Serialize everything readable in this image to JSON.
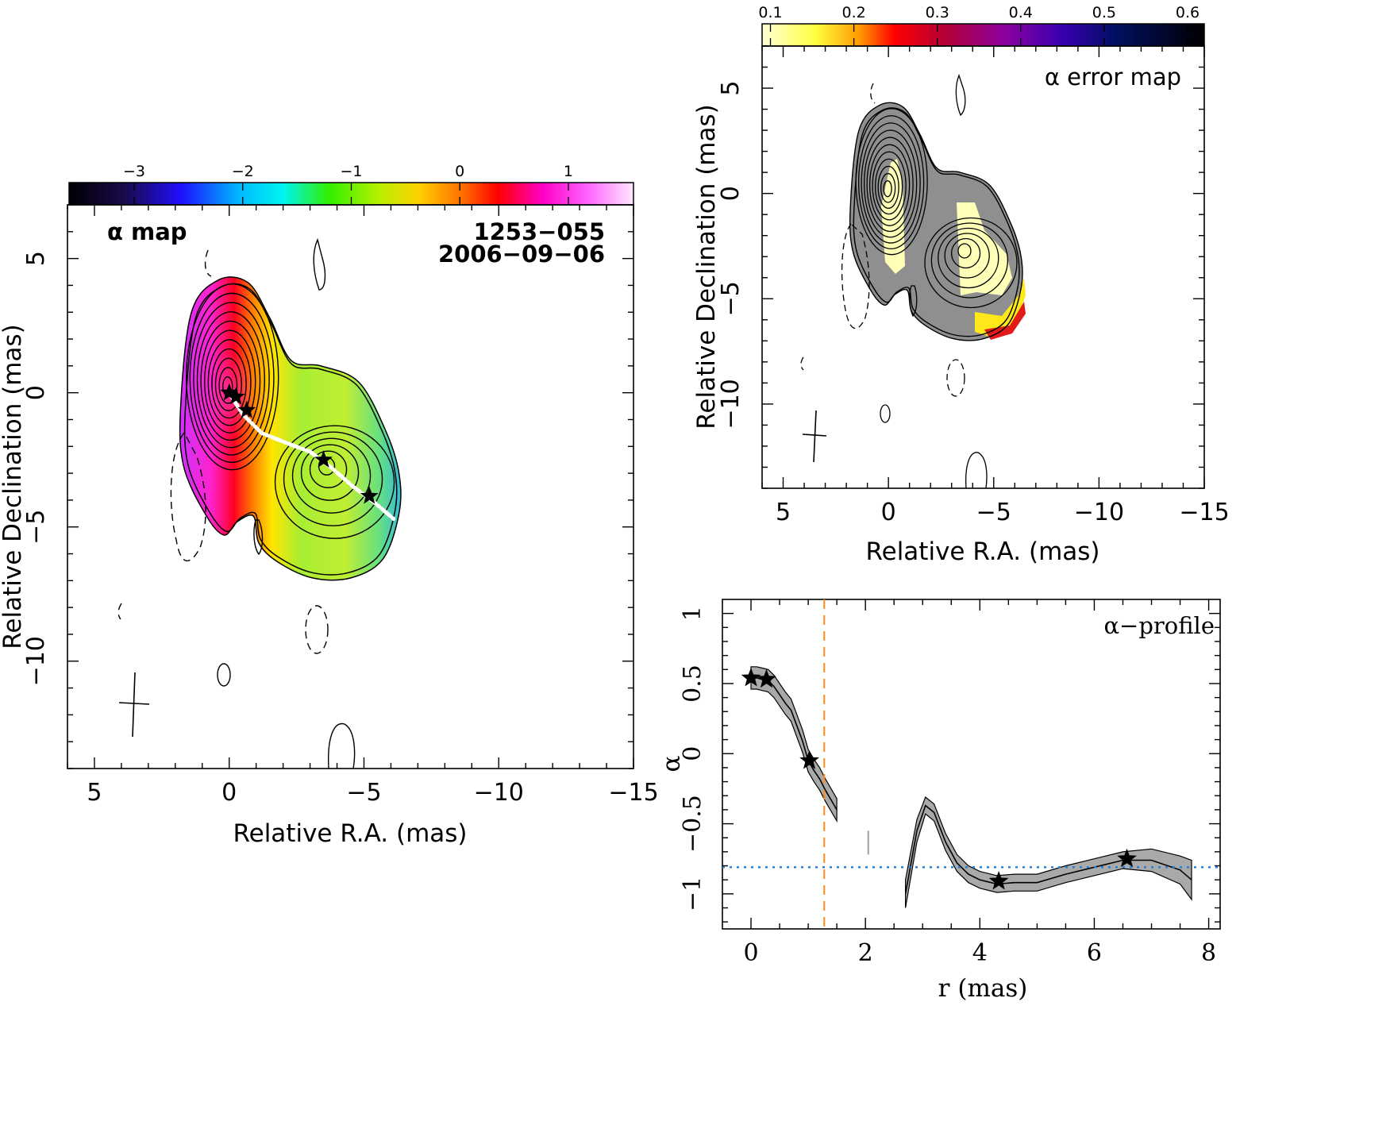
{
  "figure": {
    "panel_a": {
      "label": "α map",
      "source": "1253−055",
      "epoch": "2006−09−06",
      "xlabel": "Relative R.A. (mas)",
      "ylabel": "Relative Declination (mas)"
    },
    "panel_b": {
      "label": "α error map",
      "xlabel": "Relative R.A. (mas)",
      "ylabel": "Relative Declination (mas)"
    },
    "panel_c": {
      "label": "α−profile",
      "xlabel": "r (mas)",
      "ylabel": "α"
    }
  },
  "chart_data": [
    {
      "type": "heatmap",
      "title": "α map",
      "annotations": [
        "1253−055",
        "2006−09−06"
      ],
      "xlabel": "Relative R.A. (mas)",
      "ylabel": "Relative Declination (mas)",
      "xlim": [
        6,
        -15
      ],
      "ylim": [
        -14,
        7
      ],
      "xticks": [
        5,
        0,
        -5,
        -10,
        -15
      ],
      "yticks": [
        5,
        0,
        -5,
        -10
      ],
      "colorbar": {
        "range": [
          -3.6,
          1.6
        ],
        "ticks": [
          -3,
          -2,
          -1,
          0,
          1
        ]
      },
      "core_alpha": 0.5,
      "jet_alpha": -0.8,
      "core_position": [
        0,
        0
      ],
      "knot_position": [
        -3.5,
        -2.5
      ],
      "stars": [
        [
          0,
          0
        ],
        [
          -0.25,
          -0.15
        ],
        [
          -0.65,
          -0.65
        ],
        [
          -3.5,
          -2.5
        ],
        [
          -5.2,
          -3.85
        ]
      ],
      "ridge_line": [
        [
          0,
          0
        ],
        [
          -0.5,
          -0.8
        ],
        [
          -1.2,
          -1.5
        ],
        [
          -2.2,
          -1.9
        ],
        [
          -3.0,
          -2.2
        ],
        [
          -3.8,
          -2.8
        ],
        [
          -4.6,
          -3.5
        ],
        [
          -5.4,
          -4.1
        ],
        [
          -6.1,
          -4.7
        ]
      ],
      "grid": false
    },
    {
      "type": "heatmap",
      "title": "α error map",
      "xlabel": "Relative R.A. (mas)",
      "ylabel": "Relative Declination (mas)",
      "xlim": [
        6,
        -15
      ],
      "ylim": [
        -14,
        7
      ],
      "xticks": [
        5,
        0,
        -5,
        -10,
        -15
      ],
      "yticks": [
        5,
        0,
        -5,
        -10
      ],
      "colorbar": {
        "range": [
          0.09,
          0.62
        ],
        "ticks": [
          0.1,
          0.2,
          0.3,
          0.4,
          0.5,
          0.6
        ]
      },
      "grid": false
    },
    {
      "type": "line",
      "title": "α−profile",
      "xlabel": "r (mas)",
      "ylabel": "α",
      "xlim": [
        -0.5,
        8.2
      ],
      "ylim": [
        -1.25,
        1.1
      ],
      "xticks": [
        0,
        2,
        4,
        6,
        8
      ],
      "yticks": [
        -1,
        -0.5,
        0,
        0.5,
        1
      ],
      "series": [
        {
          "segments": [
            {
              "x": [
                0,
                0.1,
                0.2,
                0.3,
                0.4,
                0.5,
                0.6,
                0.7,
                0.8,
                0.9,
                1.0,
                1.1,
                1.2,
                1.3,
                1.4,
                1.5
              ],
              "y": [
                0.54,
                0.54,
                0.53,
                0.52,
                0.48,
                0.42,
                0.36,
                0.31,
                0.2,
                0.09,
                -0.05,
                -0.12,
                -0.18,
                -0.26,
                -0.33,
                -0.4
              ],
              "err": [
                0.08,
                0.08,
                0.08,
                0.08,
                0.08,
                0.08,
                0.08,
                0.08,
                0.08,
                0.08,
                0.08,
                0.08,
                0.08,
                0.08,
                0.08,
                0.08
              ]
            },
            {
              "x": [
                2.7,
                2.9,
                3.05,
                3.2,
                3.4,
                3.6,
                3.8,
                4.0,
                4.3,
                4.6,
                5.0,
                5.5,
                6.0,
                6.5,
                7.0,
                7.5,
                7.7
              ],
              "y": [
                -1.0,
                -0.55,
                -0.37,
                -0.42,
                -0.63,
                -0.78,
                -0.86,
                -0.9,
                -0.93,
                -0.92,
                -0.92,
                -0.86,
                -0.81,
                -0.76,
                -0.76,
                -0.83,
                -0.9
              ],
              "err": [
                0.1,
                0.08,
                0.06,
                0.06,
                0.06,
                0.06,
                0.06,
                0.06,
                0.06,
                0.06,
                0.06,
                0.06,
                0.06,
                0.06,
                0.08,
                0.1,
                0.14
              ]
            }
          ]
        }
      ],
      "stars": [
        [
          0.0,
          0.54
        ],
        [
          0.27,
          0.53
        ],
        [
          1.02,
          -0.05
        ],
        [
          4.33,
          -0.91
        ],
        [
          6.57,
          -0.75
        ]
      ],
      "vertical_dashed_line": 1.28,
      "horizontal_dotted_line": -0.81,
      "grey_bar": {
        "x": 2.05,
        "y": [
          -0.55,
          -0.72
        ]
      },
      "colors": {
        "vertical": "#ff8a1e",
        "horizontal": "#1c7fe0",
        "band": "#a9a9a9"
      },
      "grid": false
    }
  ]
}
